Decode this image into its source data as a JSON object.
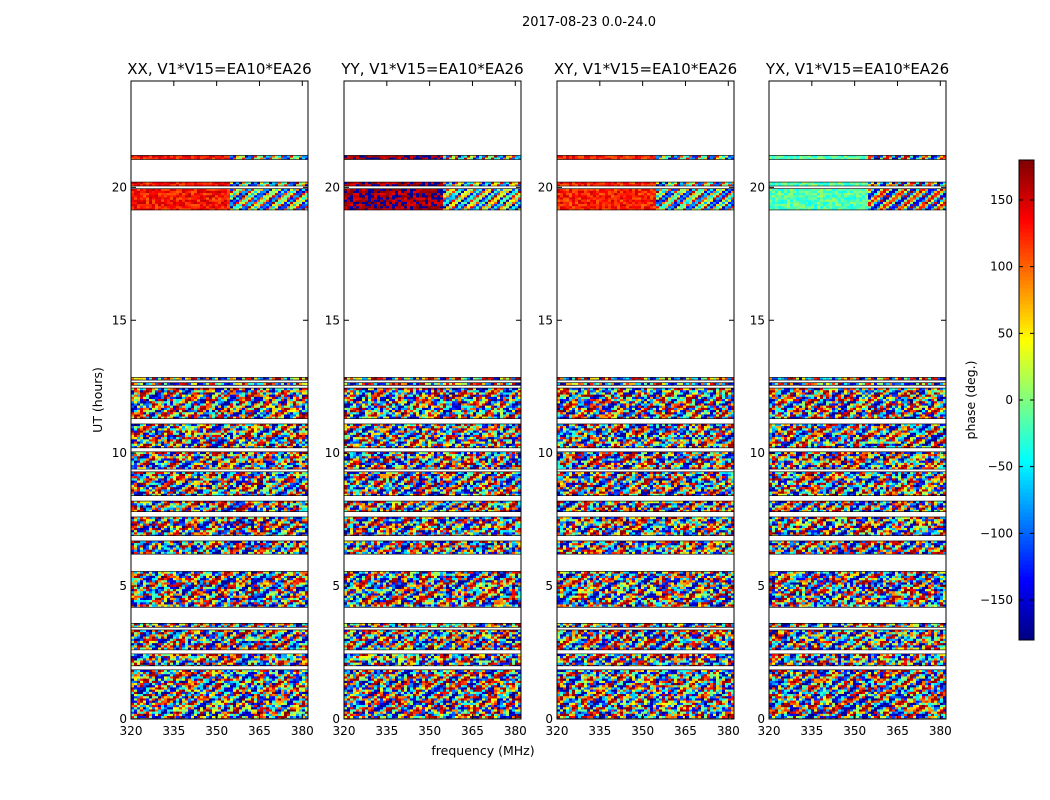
{
  "figure": {
    "suptitle": "2017-08-23 0.0-24.0"
  },
  "chart_data": {
    "type": "heatmap",
    "title": "2017-08-23 0.0-24.0",
    "xlabel": "frequency (MHz)",
    "ylabel": "UT (hours)",
    "xlim": [
      320,
      382
    ],
    "ylim": [
      0,
      24
    ],
    "x_ticks": [
      320,
      335,
      350,
      365,
      380
    ],
    "y_ticks": [
      0,
      5,
      10,
      15,
      20
    ],
    "panels": [
      {
        "title": "XX, V1*V15=EA10*EA26",
        "base_phase": 130,
        "band_phase": 130
      },
      {
        "title": "YY, V1*V15=EA10*EA26",
        "base_phase": 165,
        "band_phase": 170
      },
      {
        "title": "XY, V1*V15=EA10*EA26",
        "base_phase": 130,
        "band_phase": 125
      },
      {
        "title": "YX, V1*V15=EA10*EA26",
        "base_phase": -20,
        "band_phase": -15
      }
    ],
    "data_bands": [
      {
        "t0": 21.05,
        "t1": 21.2
      },
      {
        "t0": 20.05,
        "t1": 20.2
      },
      {
        "t0": 19.15,
        "t1": 19.95
      },
      {
        "t0": 12.75,
        "t1": 12.85
      },
      {
        "t0": 12.55,
        "t1": 12.65
      },
      {
        "t0": 11.3,
        "t1": 12.45
      },
      {
        "t0": 10.2,
        "t1": 11.1
      },
      {
        "t0": 9.4,
        "t1": 10.05
      },
      {
        "t0": 8.4,
        "t1": 9.3
      },
      {
        "t0": 7.8,
        "t1": 8.2
      },
      {
        "t0": 6.9,
        "t1": 7.6
      },
      {
        "t0": 6.2,
        "t1": 6.7
      },
      {
        "t0": 4.2,
        "t1": 5.55
      },
      {
        "t0": 3.45,
        "t1": 3.6
      },
      {
        "t0": 2.6,
        "t1": 3.35
      },
      {
        "t0": 2.0,
        "t1": 2.45
      },
      {
        "t0": 0.0,
        "t1": 1.85
      }
    ],
    "colorbar": {
      "label": "phase (deg.)",
      "range": [
        -180,
        180
      ],
      "ticks": [
        150,
        100,
        50,
        0,
        -50,
        -100,
        -150
      ],
      "tick_labels": [
        "150",
        "100",
        "50",
        "0",
        "−50",
        "−100",
        "−150"
      ],
      "colormap": "jet"
    }
  }
}
